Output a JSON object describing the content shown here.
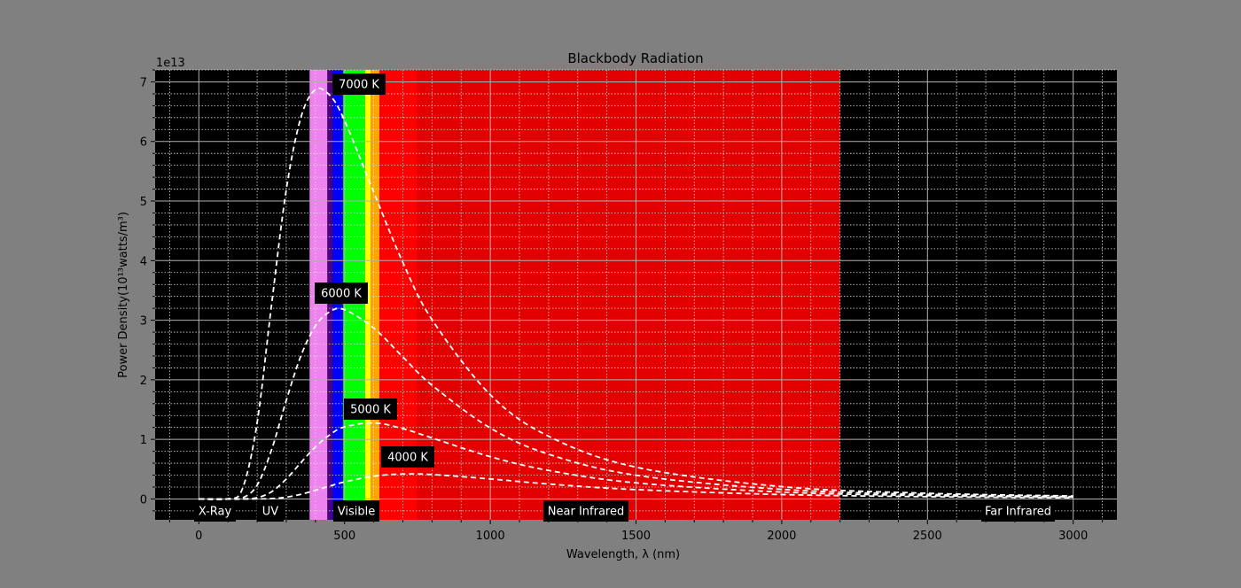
{
  "chart_data": {
    "type": "line",
    "title": "Blackbody Radiation",
    "xlabel": "Wavelength, λ (nm)",
    "ylabel": "Power Density(10¹³watts/m³)",
    "y_offset_text": "1e13",
    "xlim": [
      -150,
      3150
    ],
    "ylim": [
      -0.35,
      7.2
    ],
    "xticks": [
      0,
      500,
      1000,
      1500,
      2000,
      2500,
      3000
    ],
    "yticks": [
      0,
      1,
      2,
      3,
      4,
      5,
      6,
      7
    ],
    "grid": true,
    "x": [
      0,
      100,
      150,
      200,
      250,
      300,
      350,
      400,
      450,
      500,
      600,
      700,
      800,
      1000,
      1200,
      1500,
      2000,
      2500,
      3000
    ],
    "series": [
      {
        "temperature": "7000 K",
        "values": [
          0,
          0.0014,
          0.176,
          1.28,
          3.28,
          5.19,
          6.4,
          6.87,
          6.77,
          6.35,
          5.15,
          3.97,
          3.01,
          1.749,
          1.053,
          0.534,
          0.207,
          0.096,
          0.05
        ]
      },
      {
        "temperature": "6000 K",
        "values": [
          0,
          0.0,
          0.018,
          0.231,
          0.833,
          1.655,
          2.4,
          2.904,
          3.145,
          3.176,
          2.868,
          2.383,
          1.909,
          1.191,
          0.751,
          0.398,
          0.161,
          0.076,
          0.04
        ]
      },
      {
        "temperature": "5000 K",
        "values": [
          0,
          0,
          0.0007,
          0.021,
          0.122,
          0.335,
          0.609,
          0.874,
          1.079,
          1.21,
          1.276,
          1.181,
          1.024,
          0.71,
          0.479,
          0.27,
          0.116,
          0.056,
          0.03
        ]
      },
      {
        "temperature": "4000 K",
        "values": [
          0,
          0,
          0,
          0.0006,
          0.007,
          0.03,
          0.078,
          0.145,
          0.218,
          0.286,
          0.382,
          0.418,
          0.41,
          0.336,
          0.251,
          0.157,
          0.074,
          0.038,
          0.021
        ]
      }
    ],
    "spectrum_bands": [
      {
        "from": 380,
        "to": 441,
        "color": "#ee82ee"
      },
      {
        "from": 441,
        "to": 459,
        "color": "#4b0082"
      },
      {
        "from": 459,
        "to": 495,
        "color": "#0000ff"
      },
      {
        "from": 495,
        "to": 570,
        "color": "#00ff00"
      },
      {
        "from": 570,
        "to": 590,
        "color": "#ffff00"
      },
      {
        "from": 590,
        "to": 620,
        "color": "#ffa500"
      },
      {
        "from": 620,
        "to": 750,
        "color": "#ff0000"
      },
      {
        "from": 750,
        "to": 2200,
        "color": "#e30000"
      }
    ],
    "region_labels": [
      "X-Ray",
      "UV",
      "Visible",
      "Near Infrared",
      "Far Infrared"
    ],
    "colors": {
      "figure_bg": "#808080",
      "axes_bg": "#000000",
      "curve": "#ffffff",
      "grid": "#b0b0b0"
    }
  }
}
